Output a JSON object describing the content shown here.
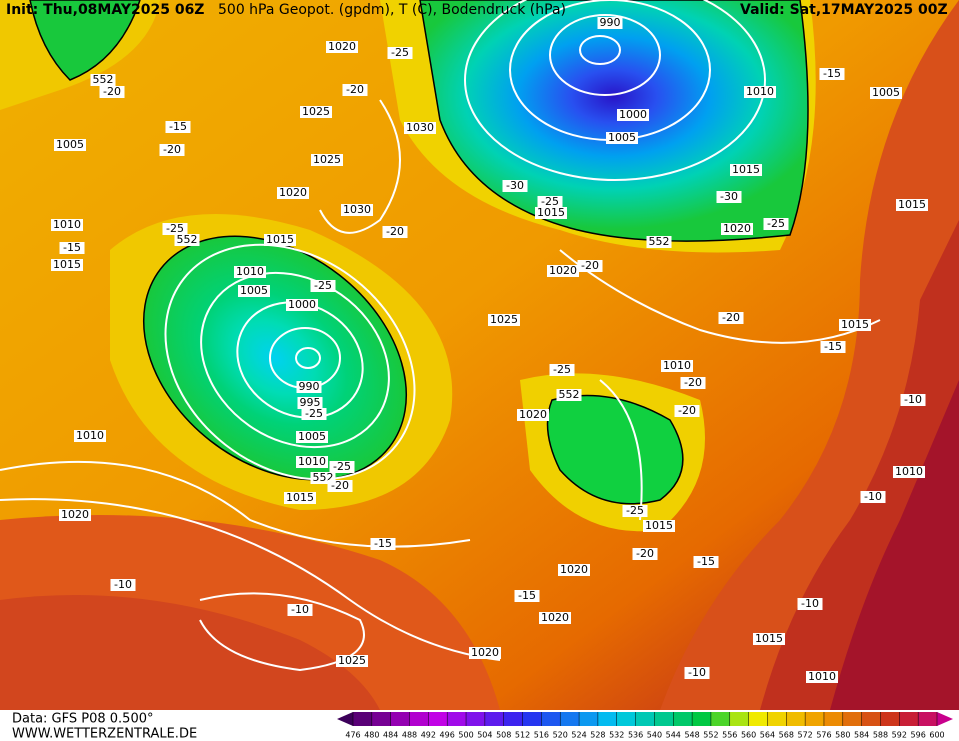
{
  "header": {
    "init": "Init: Thu,08MAY2025 06Z",
    "title": "500 hPa Geopot. (gpdm), T (C), Bodendruck (hPa)",
    "valid": "Valid: Sat,17MAY2025 00Z"
  },
  "footer": {
    "data": "Data: GFS P08 0.500°",
    "site": "WWW.WETTERZENTRALE.DE"
  },
  "colorbar": {
    "ticks": [
      476,
      480,
      484,
      488,
      492,
      496,
      500,
      504,
      508,
      512,
      516,
      520,
      524,
      528,
      532,
      536,
      540,
      544,
      548,
      552,
      556,
      560,
      564,
      568,
      572,
      576,
      580,
      584,
      588,
      592,
      596,
      600
    ]
  },
  "labels": [
    "990",
    "1020",
    "-25",
    "552",
    "-20",
    "-20",
    "1025",
    "1010",
    "1005",
    "-15",
    "1000",
    "1030",
    "1005",
    "-20",
    "-15",
    "1025",
    "1005",
    "1015",
    "-30",
    "-25",
    "1015",
    "-30",
    "1015",
    "1020",
    "1030",
    "1010",
    "-25",
    "552",
    "1015",
    "-20",
    "-25",
    "1020",
    "552",
    "-15",
    "1015",
    "1020",
    "-20",
    "1010",
    "1005",
    "-25",
    "1000",
    "1025",
    "-20",
    "1015",
    "-15",
    "1010",
    "-25",
    "-20",
    "990",
    "995",
    "-25",
    "552",
    "1020",
    "-20",
    "-10",
    "1010",
    "1005",
    "1010",
    "-25",
    "552",
    "-20",
    "1010",
    "1015",
    "-10",
    "1020",
    "-25",
    "1015",
    "-15",
    "-20",
    "-15",
    "1020",
    "-10",
    "-15",
    "-10",
    "-10",
    "1020",
    "1015",
    "1020",
    "1025",
    "-10",
    "1010"
  ]
}
